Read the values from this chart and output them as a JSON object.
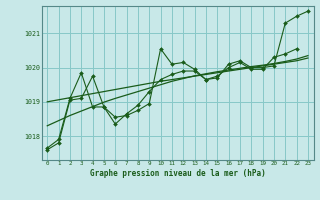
{
  "title": "Graphe pression niveau de la mer (hPa)",
  "background_color": "#c8e8e8",
  "plot_bg_color": "#c8e8e8",
  "grid_color": "#88c8c8",
  "line_color": "#1a5c1a",
  "xlim": [
    -0.5,
    23.5
  ],
  "ylim": [
    1017.3,
    1021.8
  ],
  "yticks": [
    1018,
    1019,
    1020,
    1021
  ],
  "xticks": [
    0,
    1,
    2,
    3,
    4,
    5,
    6,
    7,
    8,
    9,
    10,
    11,
    12,
    13,
    14,
    15,
    16,
    17,
    18,
    19,
    20,
    21,
    22,
    23
  ],
  "s1_x": [
    0,
    1,
    2,
    3,
    4,
    5,
    6,
    7,
    8,
    9,
    10,
    11,
    12,
    13,
    14,
    15,
    16,
    17,
    18,
    19,
    20,
    21,
    22,
    23
  ],
  "s1_y": [
    1017.6,
    1017.8,
    1019.05,
    1019.1,
    1019.75,
    1018.85,
    1018.55,
    1018.6,
    1018.75,
    1018.95,
    1020.55,
    1020.1,
    1020.15,
    1019.95,
    1019.65,
    1019.7,
    1020.1,
    1020.2,
    1020.0,
    1020.0,
    1020.05,
    1021.3,
    1021.5,
    1021.65
  ],
  "s2_x": [
    0,
    1,
    2,
    3,
    4,
    5,
    6,
    7,
    8,
    9,
    10,
    11,
    12,
    13,
    14,
    15,
    16,
    17,
    18,
    19,
    20,
    21,
    22
  ],
  "s2_y": [
    1017.65,
    1017.9,
    1019.1,
    1019.85,
    1018.85,
    1018.85,
    1018.35,
    1018.65,
    1018.9,
    1019.3,
    1019.65,
    1019.8,
    1019.9,
    1019.9,
    1019.65,
    1019.75,
    1020.0,
    1020.15,
    1019.95,
    1019.95,
    1020.3,
    1020.4,
    1020.55
  ],
  "s3_x": [
    0,
    1,
    2,
    3,
    4,
    5,
    6,
    7,
    8,
    9,
    10,
    11,
    12,
    13,
    14,
    15,
    16,
    17,
    18,
    19,
    20,
    21,
    22,
    23
  ],
  "s3_y": [
    1018.3,
    1018.45,
    1018.6,
    1018.73,
    1018.86,
    1018.99,
    1019.1,
    1019.2,
    1019.3,
    1019.4,
    1019.5,
    1019.6,
    1019.68,
    1019.76,
    1019.82,
    1019.88,
    1019.93,
    1019.98,
    1020.03,
    1020.07,
    1020.12,
    1020.18,
    1020.25,
    1020.35
  ],
  "s4_x": [
    0,
    1,
    2,
    3,
    4,
    5,
    6,
    7,
    8,
    9,
    10,
    11,
    12,
    13,
    14,
    15,
    16,
    17,
    18,
    19,
    20,
    21,
    22,
    23
  ],
  "s4_y": [
    1019.0,
    1019.06,
    1019.12,
    1019.18,
    1019.24,
    1019.3,
    1019.36,
    1019.42,
    1019.48,
    1019.54,
    1019.6,
    1019.65,
    1019.7,
    1019.75,
    1019.8,
    1019.85,
    1019.9,
    1019.95,
    1020.0,
    1020.05,
    1020.1,
    1020.15,
    1020.2,
    1020.28
  ]
}
